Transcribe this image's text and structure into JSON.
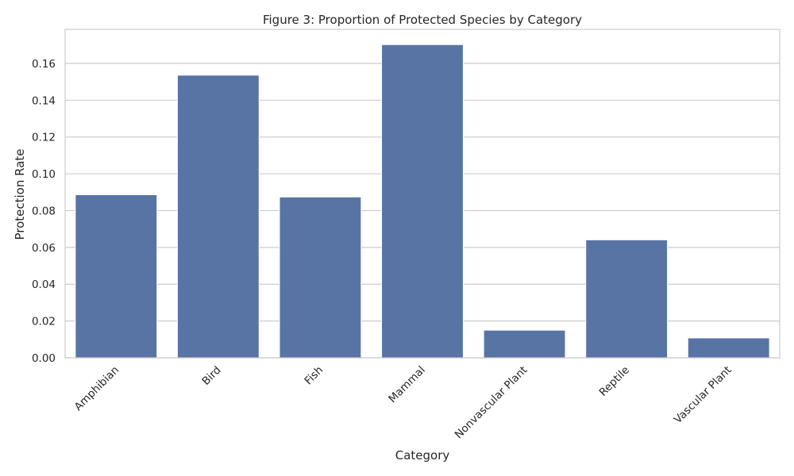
{
  "chart_data": {
    "type": "bar",
    "title": "Figure 3: Proportion of Protected Species by Category",
    "xlabel": "Category",
    "ylabel": "Protection Rate",
    "categories": [
      "Amphibian",
      "Bird",
      "Fish",
      "Mammal",
      "Nonvascular Plant",
      "Reptile",
      "Vascular Plant"
    ],
    "values": [
      0.0886,
      0.1536,
      0.0874,
      0.1702,
      0.015,
      0.0641,
      0.0108
    ],
    "ylim": [
      0,
      0.1785
    ],
    "yticks": [
      0.0,
      0.02,
      0.04,
      0.06,
      0.08,
      0.1,
      0.12,
      0.14,
      0.16
    ],
    "ytick_labels": [
      "0.00",
      "0.02",
      "0.04",
      "0.06",
      "0.08",
      "0.10",
      "0.12",
      "0.14",
      "0.16"
    ],
    "x_tick_rotation_deg": -45,
    "grid": "y",
    "bar_color": "#5874a5"
  }
}
